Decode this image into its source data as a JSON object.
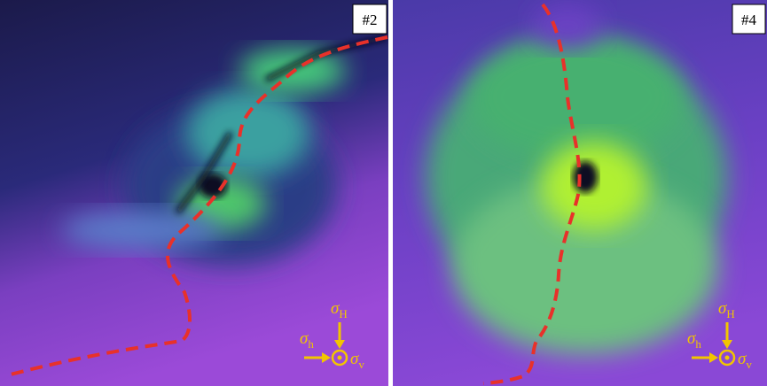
{
  "panels": [
    {
      "label": "#2",
      "stresses": [
        {
          "symbol": "σ",
          "subscript": "H"
        },
        {
          "symbol": "σ",
          "subscript": "h"
        },
        {
          "symbol": "σ",
          "subscript": "v"
        }
      ]
    },
    {
      "label": "#4",
      "stresses": [
        {
          "symbol": "σ",
          "subscript": "H"
        },
        {
          "symbol": "σ",
          "subscript": "h"
        },
        {
          "symbol": "σ",
          "subscript": "v"
        }
      ]
    }
  ]
}
